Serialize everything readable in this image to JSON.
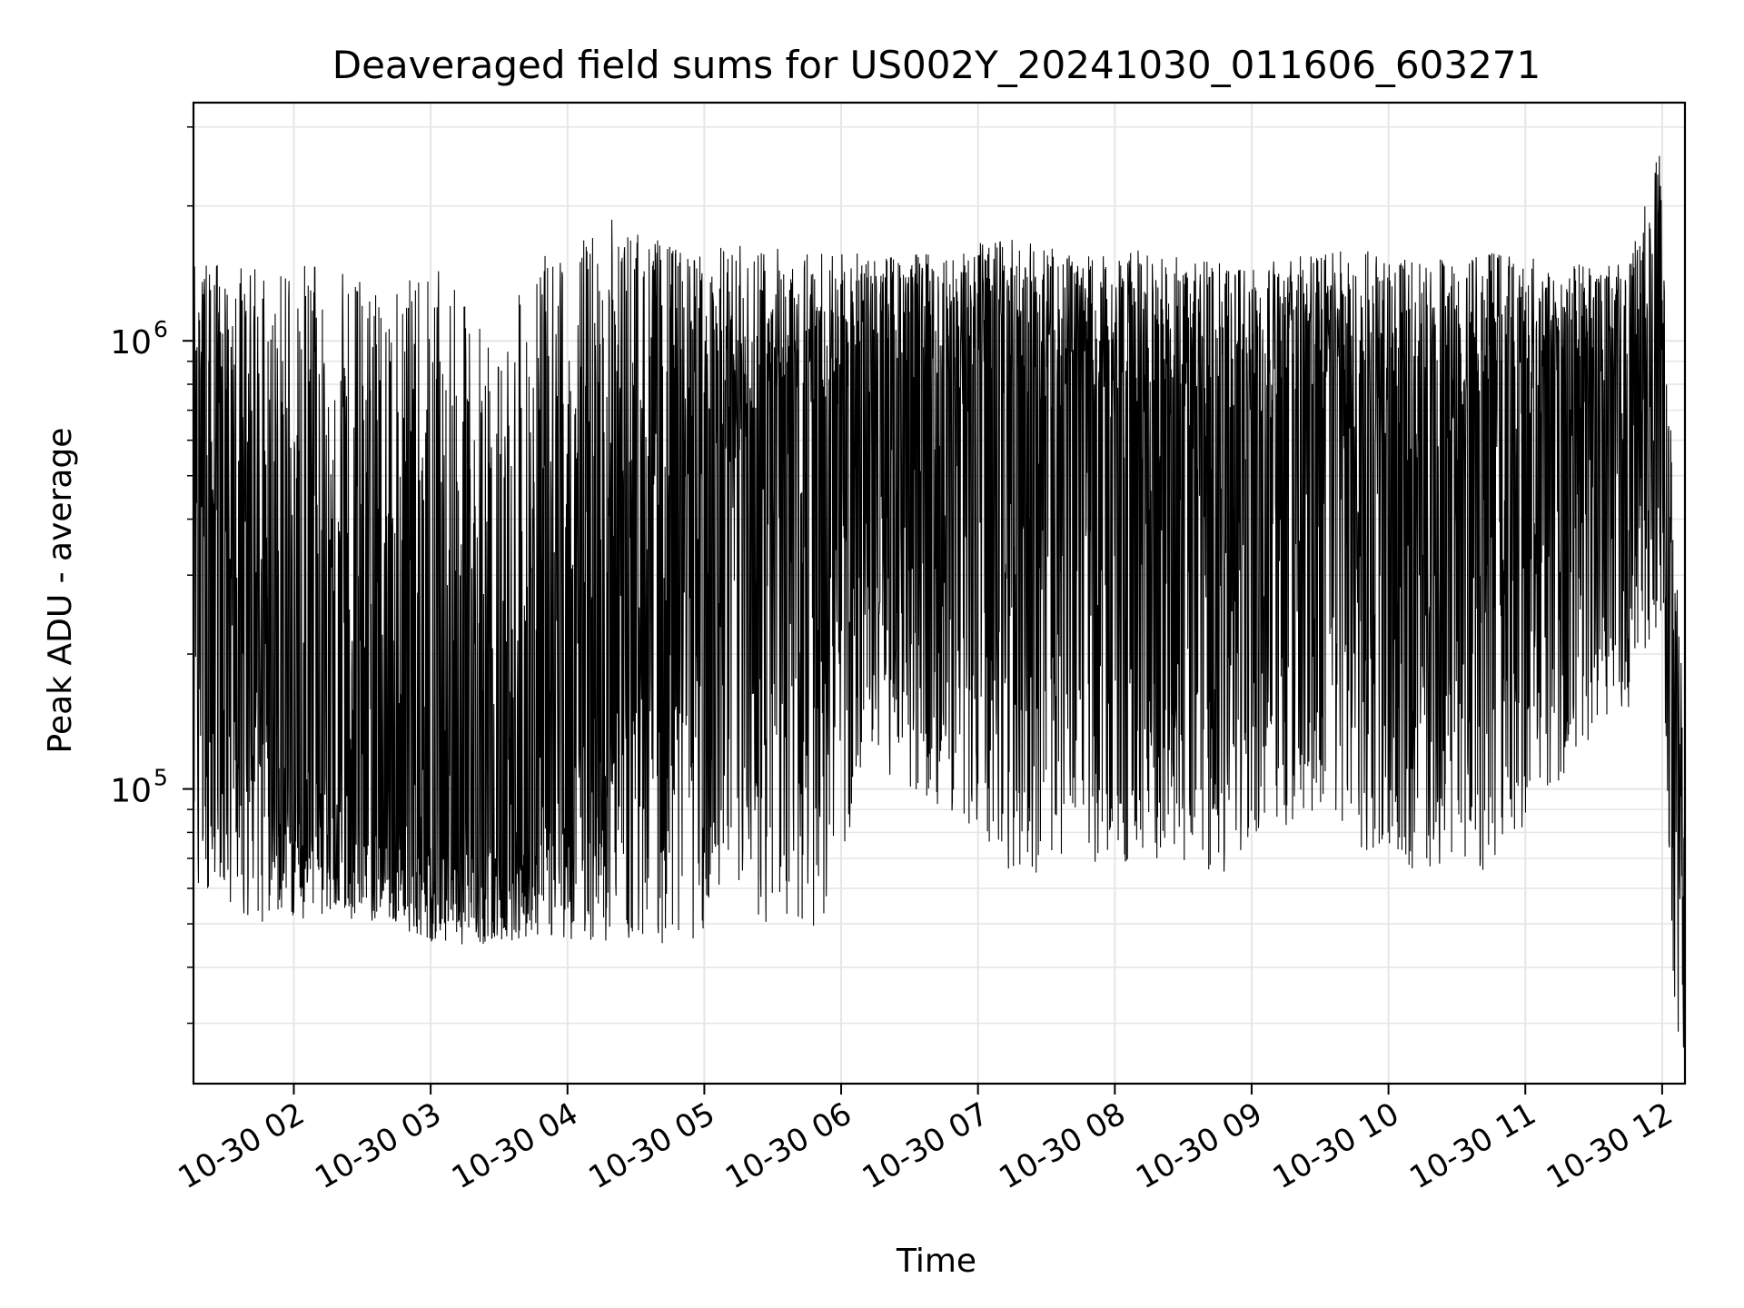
{
  "chart_data": {
    "type": "line",
    "title": "Deaveraged field sums for US002Y_20241030_011606_603271",
    "xlabel": "Time",
    "ylabel": "Peak ADU - average",
    "yscale": "log",
    "ylim": [
      22000,
      3400000
    ],
    "xlim": [
      "2024-10-30T01:16",
      "2024-10-30T12:10"
    ],
    "grid": true,
    "x_tick_labels": [
      "10-30 02",
      "10-30 03",
      "10-30 04",
      "10-30 05",
      "10-30 06",
      "10-30 07",
      "10-30 08",
      "10-30 09",
      "10-30 10",
      "10-30 11",
      "10-30 12"
    ],
    "x_ticks": [
      "2024-10-30T02:00",
      "2024-10-30T03:00",
      "2024-10-30T04:00",
      "2024-10-30T05:00",
      "2024-10-30T06:00",
      "2024-10-30T07:00",
      "2024-10-30T08:00",
      "2024-10-30T09:00",
      "2024-10-30T10:00",
      "2024-10-30T11:00",
      "2024-10-30T12:00"
    ],
    "y_tick_labels": [
      {
        "base": "10",
        "exponent": "5",
        "value": 100000
      },
      {
        "base": "10",
        "exponent": "6",
        "value": 1000000
      }
    ],
    "series": [
      {
        "color": "#000000",
        "envelope": [
          {
            "t": "2024-10-30T01:16",
            "low": 60000,
            "high": 1500000
          },
          {
            "t": "2024-10-30T01:45",
            "low": 50000,
            "high": 1500000
          },
          {
            "t": "2024-10-30T02:15",
            "low": 52000,
            "high": 1500000
          },
          {
            "t": "2024-10-30T02:45",
            "low": 50000,
            "high": 1300000
          },
          {
            "t": "2024-10-30T03:00",
            "low": 45000,
            "high": 1500000
          },
          {
            "t": "2024-10-30T03:30",
            "low": 45000,
            "high": 1000000
          },
          {
            "t": "2024-10-30T03:45",
            "low": 47000,
            "high": 1500000
          },
          {
            "t": "2024-10-30T04:20",
            "low": 45000,
            "high": 1900000
          },
          {
            "t": "2024-10-30T04:50",
            "low": 45000,
            "high": 1600000
          },
          {
            "t": "2024-10-30T05:20",
            "low": 50000,
            "high": 1650000
          },
          {
            "t": "2024-10-30T05:50",
            "low": 48000,
            "high": 1600000
          },
          {
            "t": "2024-10-30T06:15",
            "low": 110000,
            "high": 1550000
          },
          {
            "t": "2024-10-30T06:45",
            "low": 90000,
            "high": 1600000
          },
          {
            "t": "2024-10-30T07:15",
            "low": 65000,
            "high": 1700000
          },
          {
            "t": "2024-10-30T07:45",
            "low": 65000,
            "high": 1550000
          },
          {
            "t": "2024-10-30T08:15",
            "low": 70000,
            "high": 1600000
          },
          {
            "t": "2024-10-30T08:45",
            "low": 62000,
            "high": 1500000
          },
          {
            "t": "2024-10-30T09:15",
            "low": 75000,
            "high": 1550000
          },
          {
            "t": "2024-10-30T09:45",
            "low": 70000,
            "high": 1600000
          },
          {
            "t": "2024-10-30T10:15",
            "low": 65000,
            "high": 1550000
          },
          {
            "t": "2024-10-30T10:45",
            "low": 65000,
            "high": 1600000
          },
          {
            "t": "2024-10-30T11:15",
            "low": 100000,
            "high": 1500000
          },
          {
            "t": "2024-10-30T11:45",
            "low": 150000,
            "high": 1500000
          },
          {
            "t": "2024-10-30T12:00",
            "low": 250000,
            "high": 2900000
          },
          {
            "t": "2024-10-30T12:05",
            "low": 30000,
            "high": 400000
          },
          {
            "t": "2024-10-30T12:10",
            "low": 25000,
            "high": 130000
          }
        ],
        "median": [
          {
            "t": "2024-10-30T01:16",
            "value": 300000
          },
          {
            "t": "2024-10-30T02:00",
            "value": 120000
          },
          {
            "t": "2024-10-30T03:00",
            "value": 80000
          },
          {
            "t": "2024-10-30T03:45",
            "value": 75000
          },
          {
            "t": "2024-10-30T04:30",
            "value": 300000
          },
          {
            "t": "2024-10-30T05:30",
            "value": 600000
          },
          {
            "t": "2024-10-30T06:30",
            "value": 800000
          },
          {
            "t": "2024-10-30T07:30",
            "value": 700000
          },
          {
            "t": "2024-10-30T08:30",
            "value": 600000
          },
          {
            "t": "2024-10-30T09:30",
            "value": 650000
          },
          {
            "t": "2024-10-30T10:30",
            "value": 500000
          },
          {
            "t": "2024-10-30T11:30",
            "value": 700000
          },
          {
            "t": "2024-10-30T12:00",
            "value": 900000
          },
          {
            "t": "2024-10-30T12:10",
            "value": 50000
          }
        ]
      }
    ]
  }
}
